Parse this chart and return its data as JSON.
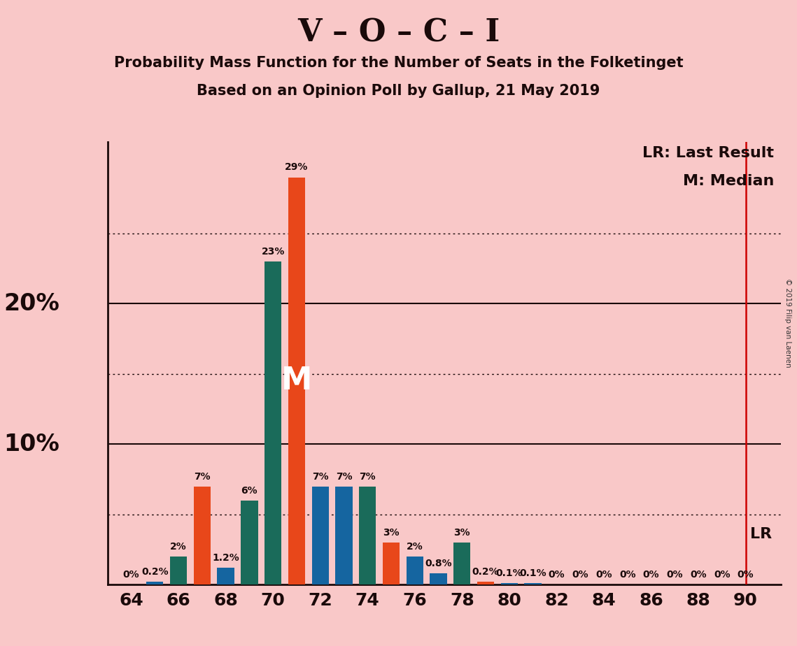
{
  "title_main": "V – O – C – I",
  "title_sub1": "Probability Mass Function for the Number of Seats in the Folketinget",
  "title_sub2": "Based on an Opinion Poll by Gallup, 21 May 2019",
  "copyright": "© 2019 Filip van Laenen",
  "background_color": "#f9c8c8",
  "bar_data": [
    {
      "seat": 64,
      "value": 0.0,
      "color": "#1565a0",
      "label": "0%"
    },
    {
      "seat": 65,
      "value": 0.2,
      "color": "#1565a0",
      "label": "0.2%"
    },
    {
      "seat": 66,
      "value": 2.0,
      "color": "#1a6b5a",
      "label": "2%"
    },
    {
      "seat": 67,
      "value": 7.0,
      "color": "#e8471a",
      "label": "7%"
    },
    {
      "seat": 68,
      "value": 1.2,
      "color": "#1565a0",
      "label": "1.2%"
    },
    {
      "seat": 69,
      "value": 6.0,
      "color": "#1a6b5a",
      "label": "6%"
    },
    {
      "seat": 70,
      "value": 23.0,
      "color": "#1a6b5a",
      "label": "23%"
    },
    {
      "seat": 71,
      "value": 29.0,
      "color": "#e8471a",
      "label": "29%"
    },
    {
      "seat": 72,
      "value": 7.0,
      "color": "#1565a0",
      "label": "7%"
    },
    {
      "seat": 73,
      "value": 7.0,
      "color": "#1565a0",
      "label": "7%"
    },
    {
      "seat": 74,
      "value": 7.0,
      "color": "#1a6b5a",
      "label": "7%"
    },
    {
      "seat": 75,
      "value": 3.0,
      "color": "#e8471a",
      "label": "3%"
    },
    {
      "seat": 76,
      "value": 2.0,
      "color": "#1565a0",
      "label": "2%"
    },
    {
      "seat": 77,
      "value": 0.8,
      "color": "#1565a0",
      "label": "0.8%"
    },
    {
      "seat": 78,
      "value": 3.0,
      "color": "#1a6b5a",
      "label": "3%"
    },
    {
      "seat": 79,
      "value": 0.2,
      "color": "#e8471a",
      "label": "0.2%"
    },
    {
      "seat": 80,
      "value": 0.1,
      "color": "#1565a0",
      "label": "0.1%"
    },
    {
      "seat": 81,
      "value": 0.1,
      "color": "#1565a0",
      "label": "0.1%"
    },
    {
      "seat": 82,
      "value": 0.0,
      "color": "#1565a0",
      "label": "0%"
    },
    {
      "seat": 83,
      "value": 0.0,
      "color": "#1565a0",
      "label": "0%"
    },
    {
      "seat": 84,
      "value": 0.0,
      "color": "#1565a0",
      "label": "0%"
    },
    {
      "seat": 85,
      "value": 0.0,
      "color": "#1565a0",
      "label": "0%"
    },
    {
      "seat": 86,
      "value": 0.0,
      "color": "#1565a0",
      "label": "0%"
    },
    {
      "seat": 87,
      "value": 0.0,
      "color": "#1565a0",
      "label": "0%"
    },
    {
      "seat": 88,
      "value": 0.0,
      "color": "#1565a0",
      "label": "0%"
    },
    {
      "seat": 89,
      "value": 0.0,
      "color": "#1565a0",
      "label": "0%"
    },
    {
      "seat": 90,
      "value": 0.0,
      "color": "#e8471a",
      "label": "0%"
    }
  ],
  "solid_gridlines": [
    10,
    20
  ],
  "dotted_gridlines": [
    5,
    15,
    25
  ],
  "xlim": [
    63.0,
    91.5
  ],
  "ylim": [
    0,
    31.5
  ],
  "xticks": [
    64,
    66,
    68,
    70,
    72,
    74,
    76,
    78,
    80,
    82,
    84,
    86,
    88,
    90
  ],
  "median_seat": 71,
  "lr_seat": 90,
  "lr_line_color": "#cc0000",
  "legend_lr": "LR: Last Result",
  "legend_m": "M: Median",
  "median_label": "M",
  "median_label_color": "#ffffff",
  "bar_width": 0.72,
  "ylabel_20": "20%",
  "ylabel_10": "10%",
  "lr_bottom_label": "LR",
  "title_fontsize": 32,
  "subtitle_fontsize": 15,
  "tick_fontsize": 18,
  "label_fontsize": 10,
  "legend_fontsize": 16,
  "ylabel_fontsize": 24
}
